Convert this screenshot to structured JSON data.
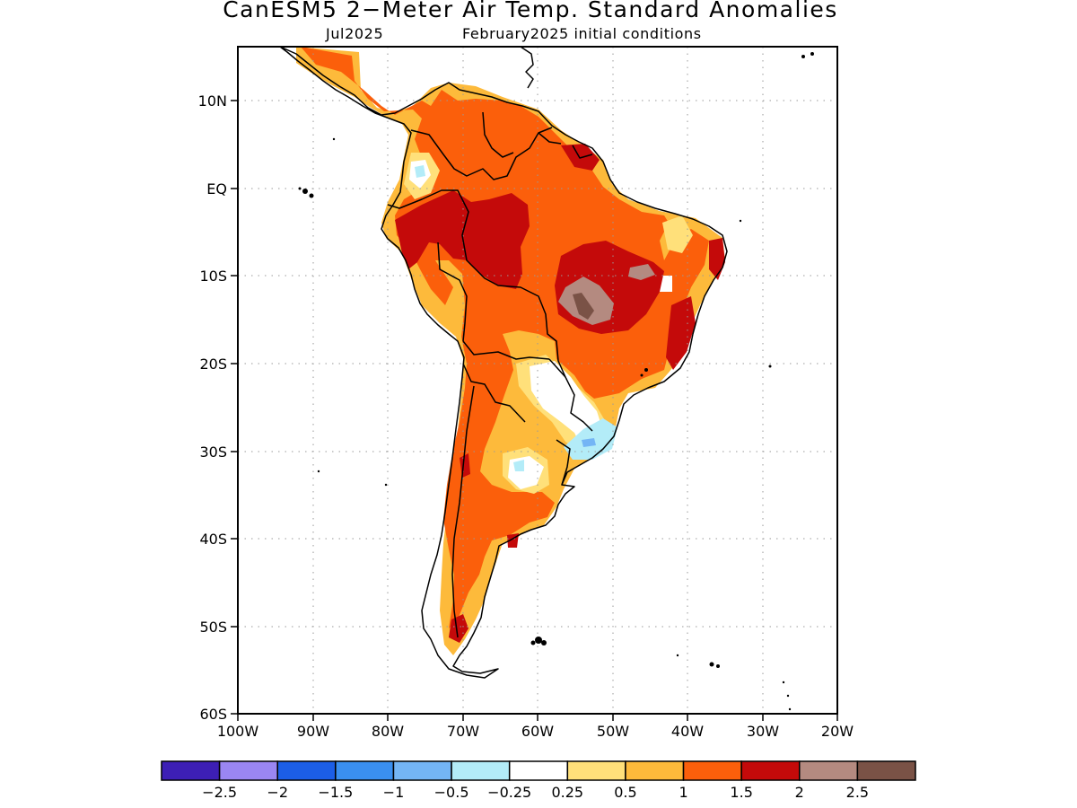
{
  "title": "CanESM5 2−Meter Air Temp. Standard Anomalies",
  "subtitle_left": "Jul2025",
  "subtitle_right": "February2025 initial conditions",
  "map": {
    "lon_range": [
      -100,
      -20
    ],
    "lat_range": [
      -60,
      16
    ],
    "lat_ticks": [
      "10N",
      "EQ",
      "10S",
      "20S",
      "30S",
      "40S",
      "50S",
      "60S"
    ],
    "lon_ticks": [
      "100W",
      "90W",
      "80W",
      "70W",
      "60W",
      "50W",
      "40W",
      "30W",
      "20W"
    ],
    "grid": "dotted"
  },
  "colorbar": {
    "colors": [
      "#3d1fb5",
      "#9a86f2",
      "#1c5ee6",
      "#3a8ff0",
      "#74b5f5",
      "#b3ecf8",
      "#ffffff",
      "#ffe07a",
      "#fdba3b",
      "#fb5f0b",
      "#c40a0a",
      "#b48a80",
      "#7a5246"
    ],
    "labels": [
      "−2.5",
      "−2",
      "−1.5",
      "−1",
      "−0.5",
      "−0.25",
      "0.25",
      "0.5",
      "1",
      "1.5",
      "2",
      "2.5"
    ]
  }
}
